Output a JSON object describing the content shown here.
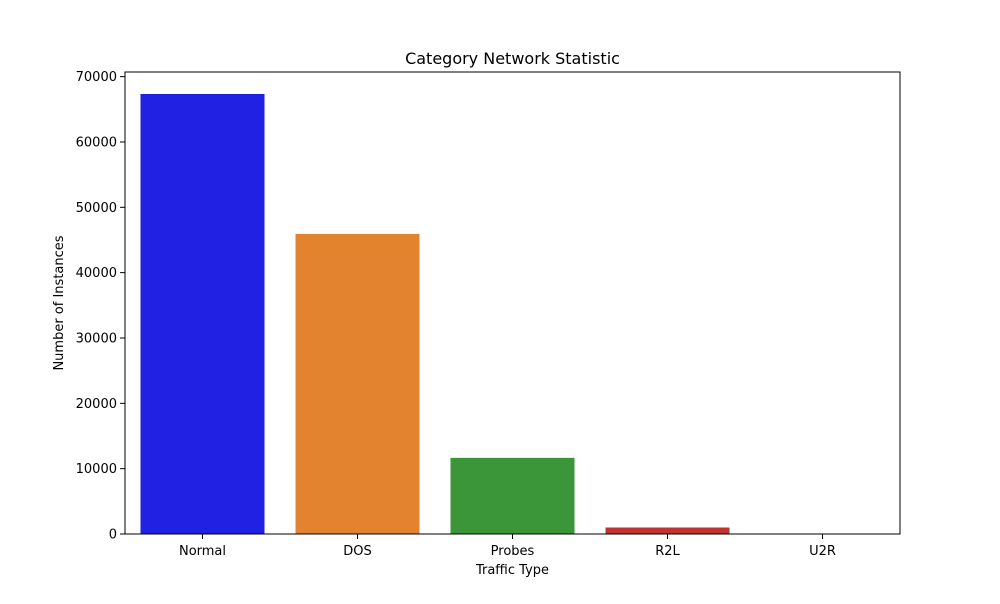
{
  "chart_data": {
    "type": "bar",
    "title": "Category Network Statistic",
    "xlabel": "Traffic Type",
    "ylabel": "Number of Instances",
    "categories": [
      "Normal",
      "DOS",
      "Probes",
      "R2L",
      "U2R"
    ],
    "values": [
      67343,
      45927,
      11656,
      995,
      52
    ],
    "colors": [
      "#2121e3",
      "#e3832f",
      "#3b963a",
      "#c1332f",
      "#8c66b4"
    ],
    "ylim": [
      0,
      70710
    ],
    "yticks": [
      0,
      10000,
      20000,
      30000,
      40000,
      50000,
      60000,
      70000
    ],
    "grid": false,
    "legend": "none"
  }
}
